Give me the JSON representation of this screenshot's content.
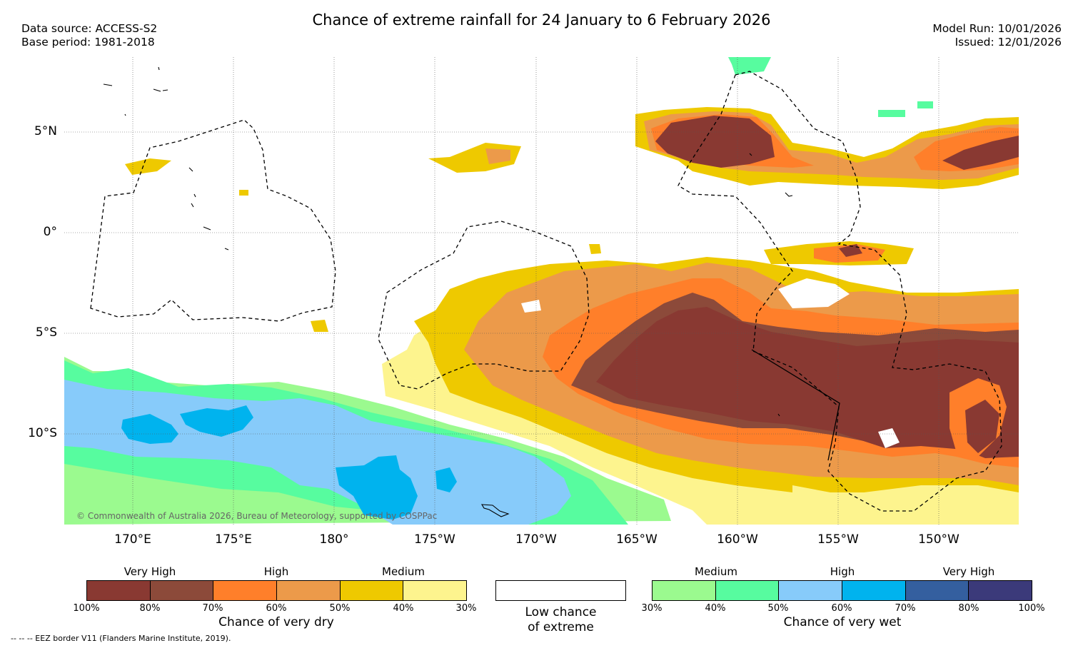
{
  "title": "Chance of extreme rainfall for 24 January to 6 February 2026",
  "data_source": "Data source: ACCESS-S2",
  "base_period": "Base period: 1981-2018",
  "model_run": "Model Run: 10/01/2026",
  "issued": "Issued: 12/01/2026",
  "copyright": "© Commonwealth of Australia 2026, Bureau of Meteorology, supported by COSPPac",
  "footnote": "--  --  -- EEZ border V11 (Flanders Marine Institute, 2019).",
  "lat_labels": [
    "5°N",
    "0°",
    "5°S",
    "10°S"
  ],
  "lon_labels": [
    "170°E",
    "175°E",
    "180°",
    "175°W",
    "170°W",
    "165°W",
    "160°W",
    "155°W",
    "150°W"
  ],
  "colors": {
    "dry_100_80": "#893932",
    "dry_80_70": "#8c4a3a",
    "dry_70_60": "#ff7f2a",
    "dry_60_50": "#ec9a4a",
    "dry_50_40": "#eec900",
    "dry_40_30": "#fdf48e",
    "wet_30_40": "#9bfa8f",
    "wet_40_50": "#57fc9f",
    "wet_50_60": "#87cbfa",
    "wet_60_70": "#00b3ee",
    "wet_70_80": "#345f9f",
    "wet_80_100": "#3b3a7a"
  },
  "legend_dry": {
    "title": "Chance of very dry",
    "levels": [
      "Very High",
      "High",
      "Medium"
    ],
    "ticks": [
      "100%",
      "80%",
      "70%",
      "60%",
      "50%",
      "40%",
      "30%"
    ],
    "colors": [
      "#893932",
      "#8c4a3a",
      "#ff7f2a",
      "#ec9a4a",
      "#eec900",
      "#fdf48e"
    ]
  },
  "legend_low": {
    "title_line1": "Low chance",
    "title_line2": "of extreme",
    "color": "#ffffff"
  },
  "legend_wet": {
    "title": "Chance of very wet",
    "levels": [
      "Medium",
      "High",
      "Very High"
    ],
    "ticks": [
      "30%",
      "40%",
      "50%",
      "60%",
      "70%",
      "80%",
      "100%"
    ],
    "colors": [
      "#9bfa8f",
      "#57fc9f",
      "#87cbfa",
      "#00b3ee",
      "#345f9f",
      "#3b3a7a"
    ]
  }
}
